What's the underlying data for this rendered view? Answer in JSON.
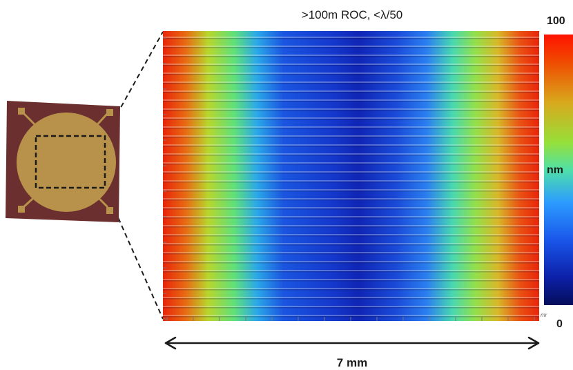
{
  "figure": {
    "title": ">100m ROC, <λ/50",
    "scale_bar": {
      "label": "7 mm"
    },
    "colorbar": {
      "max": "100",
      "unit": "nm",
      "min": "0"
    },
    "axis_unit_fragment": "mr",
    "colors": {
      "chip_body": "#6b2f2f",
      "chip_pad": "#b8924a",
      "selection_box": "#1a1a1a"
    },
    "icons": [
      "double-arrow-icon",
      "dashed-leader-lines"
    ]
  }
}
